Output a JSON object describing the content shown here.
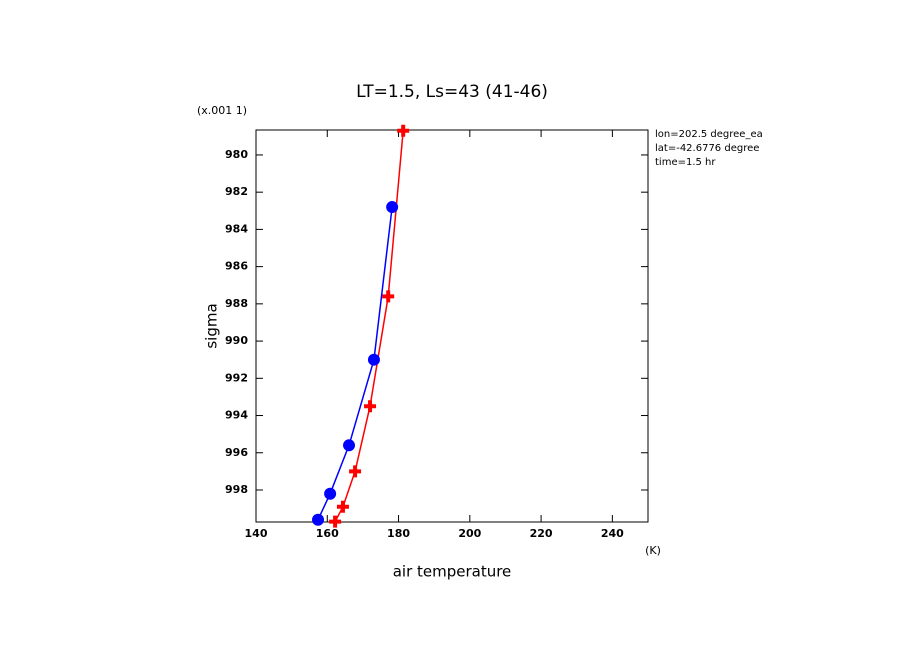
{
  "chart_data": {
    "type": "line",
    "title": "LT=1.5, Ls=43 (41-46)",
    "y_scale_label": "(x.001 1)",
    "ylabel": "sigma",
    "xlabel": "air temperature",
    "x_unit_label": "(K)",
    "info": [
      "lon=202.5 degree_ea",
      "lat=-42.6776 degree",
      "time=1.5 hr"
    ],
    "xlim": [
      140,
      250
    ],
    "xticks": [
      140,
      160,
      180,
      200,
      220,
      240
    ],
    "ylim": [
      999.72,
      978.66
    ],
    "yticks": [
      980,
      982,
      984,
      986,
      988,
      990,
      992,
      994,
      996,
      998
    ],
    "series": [
      {
        "color": "#ff0000",
        "marker": "plus",
        "x": [
          181.3,
          177.1,
          172,
          167.8,
          164.4,
          162.2
        ],
        "values": [
          978.7,
          987.6,
          993.5,
          997.0,
          998.9,
          999.7
        ]
      },
      {
        "color": "#0000ff",
        "marker": "circle",
        "x": [
          178.2,
          173.1,
          166.1,
          160.8,
          157.4
        ],
        "values": [
          982.8,
          991.0,
          995.6,
          998.2,
          999.6
        ]
      }
    ]
  }
}
